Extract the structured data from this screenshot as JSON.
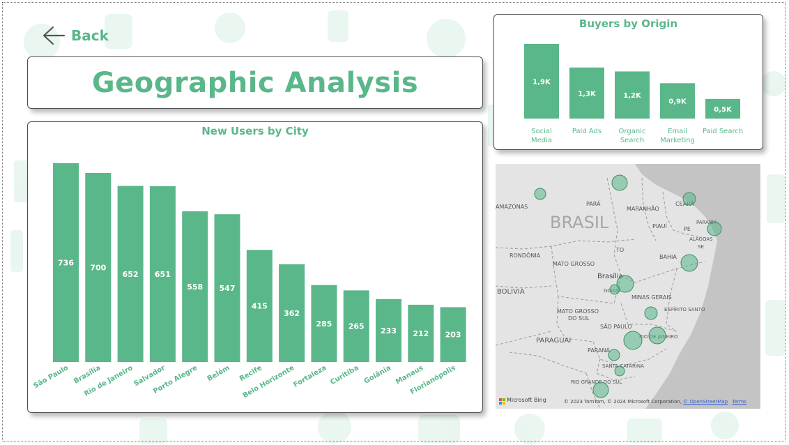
{
  "nav": {
    "back_label": "Back"
  },
  "page": {
    "title": "Geographic Analysis"
  },
  "colors": {
    "accent": "#5ab78a",
    "bar": "#5ab78a",
    "bubble": "#5ab78a"
  },
  "city_chart": {
    "title": "New Users by City"
  },
  "origin_chart": {
    "title": "Buyers by Origin"
  },
  "chart_data": [
    {
      "type": "bar",
      "title": "New Users by City",
      "categories": [
        "São Paulo",
        "Brasília",
        "Rio de Janeiro",
        "Salvador",
        "Porto Alegre",
        "Belém",
        "Recife",
        "Belo Horizonte",
        "Fortaleza",
        "Curitiba",
        "Goiânia",
        "Manaus",
        "Florianópolis"
      ],
      "values": [
        736,
        700,
        652,
        651,
        558,
        547,
        415,
        362,
        285,
        265,
        233,
        212,
        203
      ],
      "data_labels": [
        "736",
        "700",
        "652",
        "651",
        "558",
        "547",
        "415",
        "362",
        "285",
        "265",
        "233",
        "212",
        "203"
      ],
      "ylim": [
        0,
        736
      ]
    },
    {
      "type": "bar",
      "title": "Buyers by Origin",
      "categories": [
        "Social\nMedia",
        "Paid Ads",
        "Organic\nSearch",
        "Email\nMarketing",
        "Paid Search"
      ],
      "values": [
        1.9,
        1.3,
        1.2,
        0.9,
        0.5
      ],
      "data_labels": [
        "1,9K",
        "1,3K",
        "1,2K",
        "0,9K",
        "0,5K"
      ],
      "unit": "K"
    }
  ],
  "map": {
    "country_label": "BRASIL",
    "state_labels": [
      "AMAZONAS",
      "PARÁ",
      "MARANHÃO",
      "CEARÁ",
      "PIAUÍ",
      "PE",
      "PARAÍBA",
      "ALAGOAS",
      "RONDÔNIA",
      "TO",
      "MATO GROSSO",
      "BAHIA",
      "Brasília",
      "GOIÁS",
      "MINAS GERAIS",
      "ESPÍRITO SANTO",
      "MATO GROSSO DO SUL",
      "SÃO PAULO",
      "RIO DE JANEIRO",
      "PARANÁ",
      "SANTA CATARINA",
      "RIO GRANDE DO SUL",
      "BOLÍVIA",
      "PARAGUAI",
      "SE"
    ],
    "bing_label": "Microsoft Bing",
    "copyright": "© 2023 TomTom, © 2024 Microsoft Corporation,",
    "osm_link": "© OpenStreetMap",
    "terms_link": "Terms"
  }
}
